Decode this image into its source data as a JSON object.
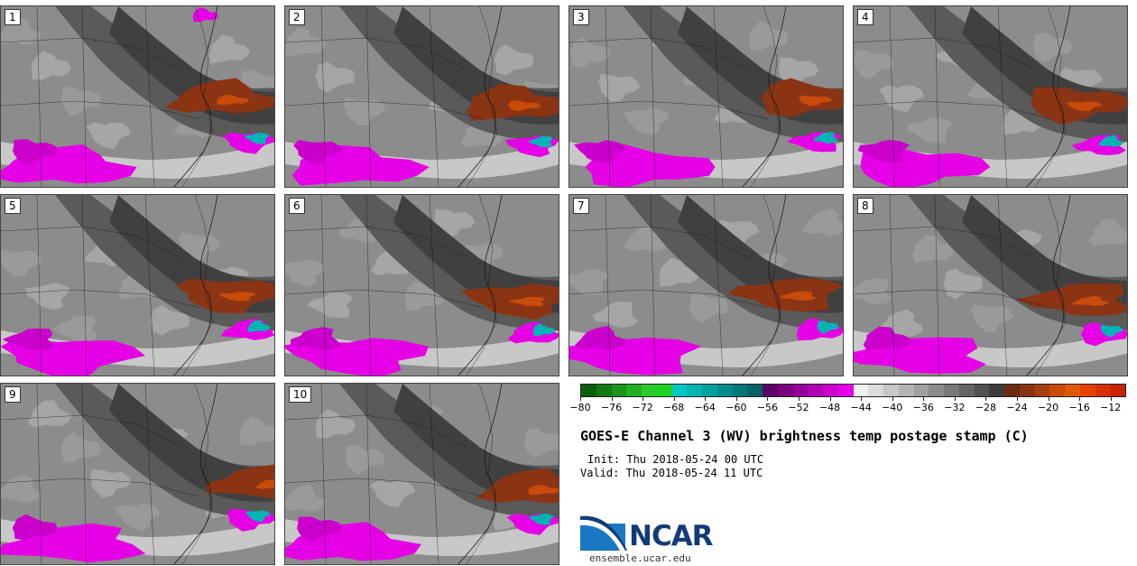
{
  "chart_data": {
    "type": "heatmap",
    "title": "GOES-E Channel 3 (WV) brightness temp postage stamp (C)",
    "init": "Init: Thu 2018-05-24 00 UTC",
    "valid": "Valid: Thu 2018-05-24 11 UTC",
    "source_url": "ensemble.ucar.edu",
    "logo_text": "NCAR",
    "panels": [
      "1",
      "2",
      "3",
      "4",
      "5",
      "6",
      "7",
      "8",
      "9",
      "10"
    ],
    "colorbar": {
      "ticks": [
        -80,
        -76,
        -72,
        -68,
        -64,
        -60,
        -56,
        -52,
        -48,
        -44,
        -40,
        -36,
        -32,
        -28,
        -24,
        -20,
        -16,
        -12
      ],
      "tick_labels": [
        "−80",
        "−76",
        "−72",
        "−68",
        "−64",
        "−60",
        "−56",
        "−52",
        "−48",
        "−44",
        "−40",
        "−36",
        "−32",
        "−28",
        "−24",
        "−20",
        "−16",
        "−12"
      ],
      "range": [
        -80,
        -10
      ],
      "colors": [
        "#0b5e0b",
        "#137a13",
        "#1a961a",
        "#22b022",
        "#2acb2a",
        "#1fd21f",
        "#00c8c8",
        "#00b4b4",
        "#00a0a0",
        "#008c8c",
        "#007878",
        "#006464",
        "#5e0066",
        "#7a0080",
        "#96009a",
        "#b000b4",
        "#cc00cc",
        "#e600e6",
        "#f0f0f0",
        "#dcdcdc",
        "#c8c8c8",
        "#b4b4b4",
        "#a0a0a0",
        "#8c8c8c",
        "#787878",
        "#646464",
        "#505050",
        "#3c3c3c",
        "#6b2a12",
        "#8a3414",
        "#a83e10",
        "#c84b0a",
        "#e05a04",
        "#e84000",
        "#d83000",
        "#c82200"
      ]
    }
  }
}
